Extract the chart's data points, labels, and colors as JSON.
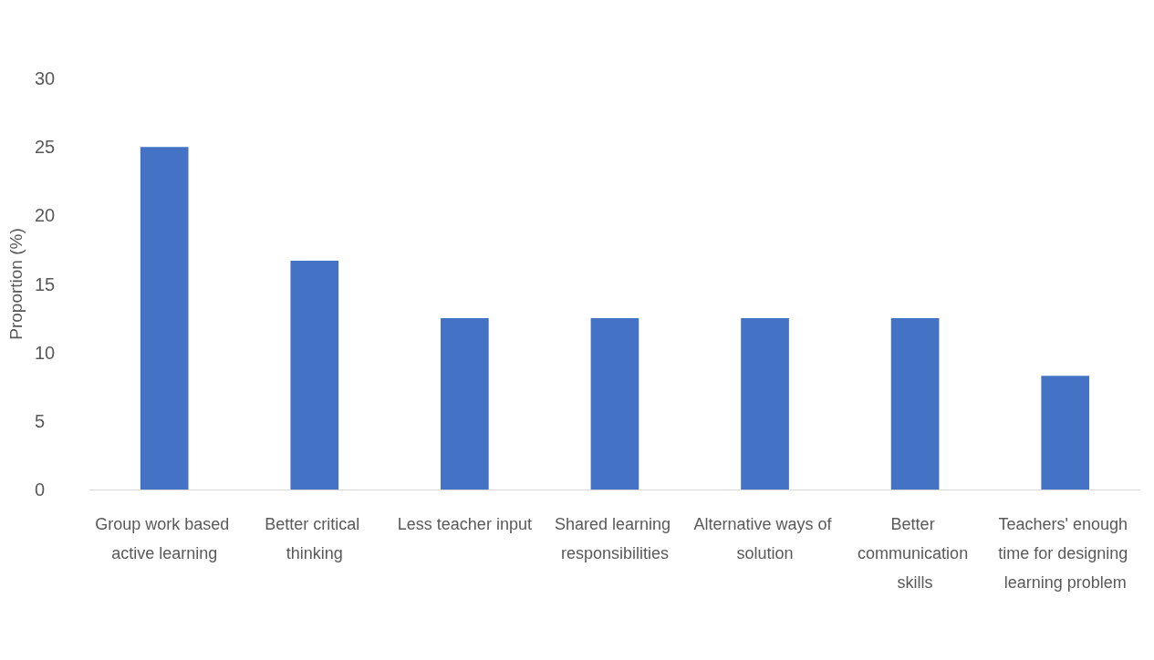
{
  "chart_data": {
    "type": "bar",
    "ylabel": "Proportion (%)",
    "categories": [
      "Group work based active learning",
      "Better critical thinking",
      "Less teacher input",
      "Shared learning responsibilities",
      "Alternative ways of solution",
      "Better communication skills",
      "Teachers' enough time for designing learning problem"
    ],
    "values": [
      25,
      16.7,
      12.5,
      12.5,
      12.5,
      12.5,
      8.3
    ],
    "color": "#4472c4",
    "ylim": [
      0,
      30
    ],
    "yticks": [
      0,
      5,
      10,
      15,
      20,
      25,
      30
    ]
  }
}
